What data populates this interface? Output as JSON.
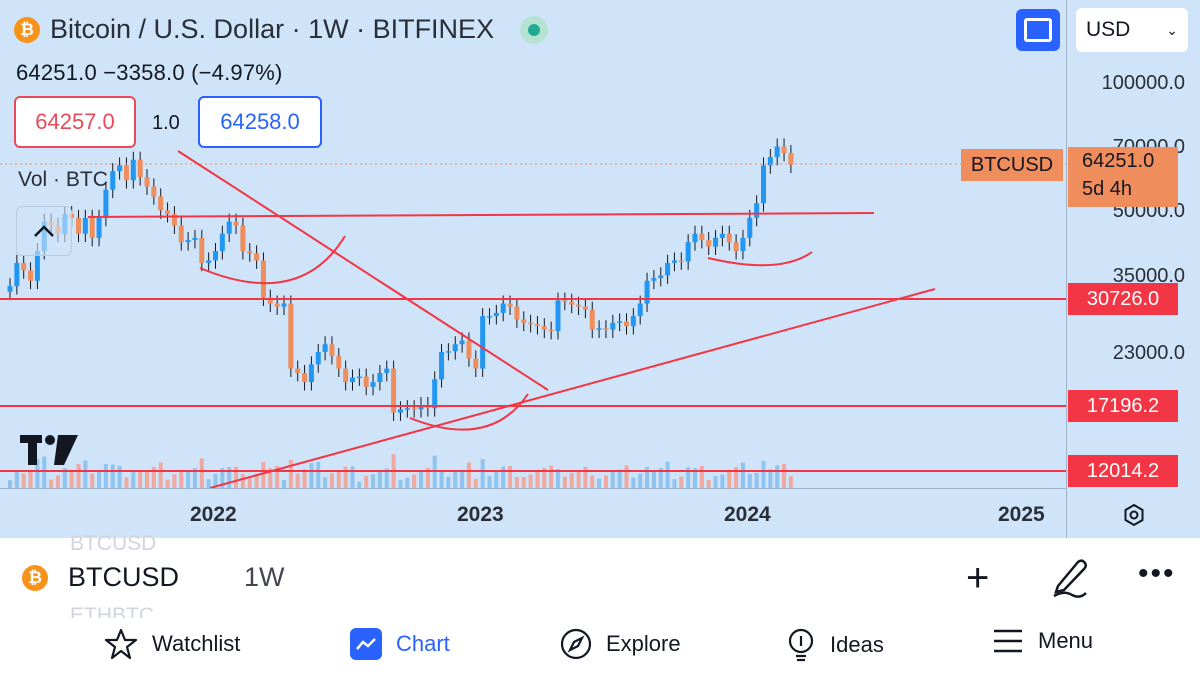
{
  "header": {
    "title": "Bitcoin / U.S. Dollar · 1W · BITFINEX",
    "ohlc": "64251.0  −3358.0 (−4.97%)",
    "sell_price": "64257.0",
    "spread": "1.0",
    "buy_price": "64258.0",
    "volume_label": "Vol · BTC",
    "currency": "USD"
  },
  "icons": {
    "coin": "bitcoin-icon",
    "collapse": "chevron-up-icon",
    "fullscreen": "fullscreen-icon",
    "settings": "settings-icon",
    "dropdown": "chevron-down-icon"
  },
  "price_axis": {
    "ticks": [
      "100000.0",
      "70000.0",
      "50000.0",
      "35000.0",
      "23000.0"
    ],
    "current_symbol": "BTCUSD",
    "current_price": "64251.0",
    "countdown": "5d 4h",
    "levels": [
      "30726.0",
      "17196.2",
      "12014.2"
    ]
  },
  "time_axis": {
    "years": [
      "2022",
      "2023",
      "2024",
      "2025"
    ]
  },
  "symbol_bar": {
    "symbol": "BTCUSD",
    "interval": "1W",
    "ghost_above": "BTCUSD",
    "ghost_below": "ETHBTC",
    "add": "+",
    "more": "•••"
  },
  "nav": {
    "watchlist": "Watchlist",
    "chart": "Chart",
    "explore": "Explore",
    "ideas": "Ideas",
    "menu": "Menu"
  },
  "colors": {
    "up": "#2196f3",
    "down": "#ef8d5c",
    "level_line": "#f23645",
    "accent": "#2962ff"
  },
  "chart_data": {
    "type": "candlestick",
    "symbol": "BTCUSD",
    "interval": "1W",
    "scale": "log",
    "closes": [
      33000,
      37500,
      36000,
      34000,
      40000,
      47000,
      46000,
      44000,
      49000,
      48000,
      44000,
      48000,
      43000,
      48000,
      56000,
      62000,
      64000,
      59000,
      66000,
      60000,
      57000,
      54000,
      50000,
      49000,
      46000,
      42000,
      42500,
      43000,
      37500,
      38000,
      40000,
      44000,
      47000,
      46000,
      40000,
      39500,
      38000,
      31000,
      30000,
      29500,
      30000,
      21000,
      20500,
      19500,
      21500,
      23000,
      24000,
      22500,
      21000,
      19500,
      20000,
      20100,
      19000,
      19500,
      20500,
      21000,
      16500,
      16800,
      16900,
      16800,
      17200,
      16900,
      19800,
      23000,
      23100,
      24000,
      24500,
      22200,
      21000,
      28000,
      28000,
      28500,
      30000,
      29500,
      27500,
      27000,
      26800,
      26500,
      26000,
      25800,
      30500,
      30300,
      29800,
      29500,
      29000,
      26000,
      26200,
      26000,
      27000,
      27200,
      26500,
      28000,
      30000,
      34000,
      34500,
      35000,
      37500,
      38000,
      37800,
      42000,
      44000,
      42500,
      41000,
      43000,
      44000,
      42000,
      40000,
      43000,
      48000,
      52000,
      64000,
      67000,
      71000,
      68500,
      64251
    ]
  }
}
